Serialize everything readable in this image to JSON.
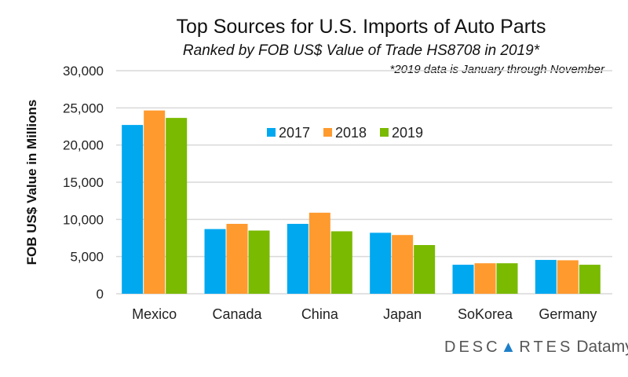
{
  "chart_data": {
    "type": "bar",
    "title": "Top Sources for U.S. Imports of Auto Parts",
    "subtitle": "Ranked by FOB US$ Value of Trade HS8708 in 2019*",
    "note": "*2019 data is January through November",
    "xlabel": "",
    "ylabel": "FOB US$ Value in Millions",
    "ylim": [
      0,
      30000
    ],
    "yticks": [
      "0",
      "5,000",
      "10,000",
      "15,000",
      "20,000",
      "25,000",
      "30,000"
    ],
    "ytick_values": [
      0,
      5000,
      10000,
      15000,
      20000,
      25000,
      30000
    ],
    "grid": true,
    "legend_position": "top-center",
    "categories": [
      "Mexico",
      "Canada",
      "China",
      "Japan",
      "SoKorea",
      "Germany"
    ],
    "series": [
      {
        "name": "2017",
        "color": "#00a8f0",
        "values": [
          22700,
          8700,
          9400,
          8200,
          3900,
          4550
        ]
      },
      {
        "name": "2018",
        "color": "#ff9a2e",
        "values": [
          24650,
          9400,
          10900,
          7900,
          4100,
          4500
        ]
      },
      {
        "name": "2019",
        "color": "#7aba00",
        "values": [
          23650,
          8500,
          8400,
          6550,
          4100,
          3900
        ]
      }
    ]
  },
  "logo": {
    "brand": "DESCARTES",
    "product": "Datamyne"
  }
}
